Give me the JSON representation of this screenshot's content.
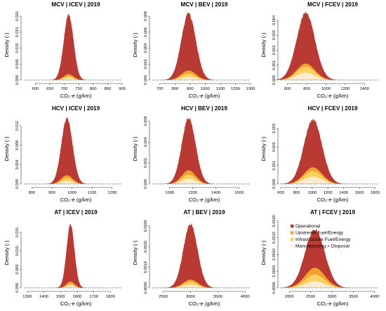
{
  "colors": {
    "operational": "#B83A32",
    "upstream": "#F0A32A",
    "infrastructure": "#F7D060",
    "manufacturing": "#FCEBD2"
  },
  "legend": {
    "items": [
      {
        "label": "Operational",
        "color": "#B83A32"
      },
      {
        "label": "Upstream Fuel/Energy",
        "color": "#F0A32A"
      },
      {
        "label": "Infrastructure Fuel/Energy",
        "color": "#F7D060"
      },
      {
        "label": "Manufacturing + Disposal",
        "color": "#FCEBD2"
      }
    ]
  },
  "chart_data": [
    {
      "type": "area",
      "title": "MCV | ICEV | 2019",
      "xlabel": "CO₂-e (g/km)",
      "ylabel": "Density (-)",
      "xlim": [
        560,
        900
      ],
      "ylim": [
        0,
        0.022
      ],
      "xticks": [
        "600",
        "650",
        "700",
        "750",
        "800",
        "850",
        "900"
      ],
      "yticks": [
        "0.000",
        "0.005",
        "0.010",
        "0.015",
        "0.020"
      ],
      "series": [
        {
          "name": "Operational",
          "peak_x": 715,
          "peak": 0.0205,
          "sd": 17
        },
        {
          "name": "Upstream Fuel/Energy",
          "peak_x": 715,
          "peak": 0.0018,
          "sd": 17
        },
        {
          "name": "Infrastructure Fuel/Energy",
          "peak_x": 715,
          "peak": 0.0012,
          "sd": 17
        },
        {
          "name": "Manufacturing + Disposal",
          "peak_x": 715,
          "peak": 0.0006,
          "sd": 17
        }
      ]
    },
    {
      "type": "area",
      "title": "MCV | BEV | 2019",
      "xlabel": "CO₂-e (g/km)",
      "ylabel": "Density (-)",
      "xlim": [
        650,
        1300
      ],
      "ylim": [
        0,
        0.0088
      ],
      "xticks": [
        "700",
        "800",
        "900",
        "1000",
        "1100",
        "1200",
        "1300"
      ],
      "yticks": [
        "0.000",
        "0.002",
        "0.004",
        "0.006",
        "0.008"
      ],
      "series": [
        {
          "name": "Operational",
          "peak_x": 890,
          "peak": 0.0083,
          "sd": 48
        },
        {
          "name": "Upstream Fuel/Energy",
          "peak_x": 890,
          "peak": 0.0012,
          "sd": 48
        },
        {
          "name": "Infrastructure Fuel/Energy",
          "peak_x": 890,
          "peak": 0.0008,
          "sd": 48
        },
        {
          "name": "Manufacturing + Disposal",
          "peak_x": 890,
          "peak": 0.0004,
          "sd": 48
        }
      ]
    },
    {
      "type": "area",
      "title": "MCV | FCEV | 2019",
      "xlabel": "CO₂-e (g/km)",
      "ylabel": "Density (-)",
      "xlim": [
        530,
        1550
      ],
      "ylim": [
        0,
        0.0047
      ],
      "xticks": [
        "600",
        "800",
        "1000",
        "1200",
        "1400"
      ],
      "yticks": [
        "0.000",
        "0.001",
        "0.002",
        "0.003",
        "0.004"
      ],
      "series": [
        {
          "name": "Operational",
          "peak_x": 790,
          "peak": 0.0045,
          "sd": 95
        },
        {
          "name": "Upstream Fuel/Energy",
          "peak_x": 790,
          "peak": 0.0011,
          "sd": 95
        },
        {
          "name": "Infrastructure Fuel/Energy",
          "peak_x": 790,
          "peak": 0.0009,
          "sd": 95
        },
        {
          "name": "Manufacturing + Disposal",
          "peak_x": 790,
          "peak": 0.0005,
          "sd": 95
        }
      ]
    },
    {
      "type": "area",
      "title": "HCV | ICEV | 2019",
      "xlabel": "CO₂-e (g/km)",
      "ylabel": "Density (-)",
      "xlim": [
        760,
        1250
      ],
      "ylim": [
        0,
        0.0145
      ],
      "xticks": [
        "800",
        "900",
        "1000",
        "1100",
        "1200"
      ],
      "yticks": [
        "0.000",
        "0.004",
        "0.008",
        "0.012"
      ],
      "series": [
        {
          "name": "Operational",
          "peak_x": 975,
          "peak": 0.0136,
          "sd": 28
        },
        {
          "name": "Upstream Fuel/Energy",
          "peak_x": 975,
          "peak": 0.0018,
          "sd": 28
        },
        {
          "name": "Infrastructure Fuel/Energy",
          "peak_x": 975,
          "peak": 0.0012,
          "sd": 28
        },
        {
          "name": "Manufacturing + Disposal",
          "peak_x": 975,
          "peak": 0.0006,
          "sd": 28
        }
      ]
    },
    {
      "type": "area",
      "title": "HCV | BEV | 2019",
      "xlabel": "CO₂-e (g/km)",
      "ylabel": "Density (-)",
      "xlim": [
        850,
        1700
      ],
      "ylim": [
        0,
        0.0067
      ],
      "xticks": [
        "1000",
        "1200",
        "1400",
        "1600"
      ],
      "yticks": [
        "0.000",
        "0.002",
        "0.004",
        "0.006"
      ],
      "series": [
        {
          "name": "Operational",
          "peak_x": 1165,
          "peak": 0.0063,
          "sd": 60
        },
        {
          "name": "Upstream Fuel/Energy",
          "peak_x": 1165,
          "peak": 0.0013,
          "sd": 60
        },
        {
          "name": "Infrastructure Fuel/Energy",
          "peak_x": 1165,
          "peak": 0.0009,
          "sd": 60
        },
        {
          "name": "Manufacturing + Disposal",
          "peak_x": 1165,
          "peak": 0.0005,
          "sd": 60
        }
      ]
    },
    {
      "type": "area",
      "title": "HCV | FCEV | 2019",
      "xlabel": "CO₂-e (g/km)",
      "ylabel": "Density (-)",
      "xlim": [
        600,
        1850
      ],
      "ylim": [
        0,
        0.0038
      ],
      "xticks": [
        "600",
        "800",
        "1000",
        "1200",
        "1400",
        "1600",
        "1800"
      ],
      "yticks": [
        "0.000",
        "0.001",
        "0.002",
        "0.003"
      ],
      "series": [
        {
          "name": "Operational",
          "peak_x": 1010,
          "peak": 0.0035,
          "sd": 115
        },
        {
          "name": "Upstream Fuel/Energy",
          "peak_x": 1010,
          "peak": 0.0009,
          "sd": 115
        },
        {
          "name": "Infrastructure Fuel/Energy",
          "peak_x": 1010,
          "peak": 0.0007,
          "sd": 115
        },
        {
          "name": "Manufacturing + Disposal",
          "peak_x": 1010,
          "peak": 0.0004,
          "sd": 115
        }
      ]
    },
    {
      "type": "area",
      "title": "AT | ICEV | 2019",
      "xlabel": "CO₂-e (g/km)",
      "ylabel": "Density (-)",
      "xlim": [
        1280,
        1870
      ],
      "ylim": [
        0,
        0.019
      ],
      "xticks": [
        "1300",
        "1400",
        "1500",
        "1600",
        "1700",
        "1800"
      ],
      "yticks": [
        "0.000",
        "0.005",
        "0.010",
        "0.015"
      ],
      "series": [
        {
          "name": "Operational",
          "peak_x": 1560,
          "peak": 0.0172,
          "sd": 24
        },
        {
          "name": "Upstream Fuel/Energy",
          "peak_x": 1560,
          "peak": 0.0017,
          "sd": 24
        },
        {
          "name": "Infrastructure Fuel/Energy",
          "peak_x": 1560,
          "peak": 0.0011,
          "sd": 24
        },
        {
          "name": "Manufacturing + Disposal",
          "peak_x": 1560,
          "peak": 0.0006,
          "sd": 24
        }
      ]
    },
    {
      "type": "area",
      "title": "AT | BEV | 2019",
      "xlabel": "CO₂-e (g/km)",
      "ylabel": "Density (-)",
      "xlim": [
        2300,
        4100
      ],
      "ylim": [
        0,
        0.0034
      ],
      "xticks": [
        "2500",
        "3000",
        "3500",
        "4000"
      ],
      "yticks": [
        "0.0000",
        "0.0010",
        "0.0020",
        "0.0030"
      ],
      "series": [
        {
          "name": "Operational",
          "peak_x": 3000,
          "peak": 0.0031,
          "sd": 130
        },
        {
          "name": "Upstream Fuel/Energy",
          "peak_x": 3000,
          "peak": 0.0004,
          "sd": 130
        },
        {
          "name": "Infrastructure Fuel/Energy",
          "peak_x": 3000,
          "peak": 0.0003,
          "sd": 130
        },
        {
          "name": "Manufacturing + Disposal",
          "peak_x": 3000,
          "peak": 0.00015,
          "sd": 130
        }
      ]
    },
    {
      "type": "area",
      "title": "AT | FCEV | 2019",
      "xlabel": "CO₂-e (g/km)",
      "ylabel": "Density (-)",
      "xlim": [
        1800,
        4100
      ],
      "ylim": [
        0,
        0.0021
      ],
      "xticks": [
        "2000",
        "2500",
        "3000",
        "3500",
        "4000"
      ],
      "yticks": [
        "0.0000",
        "0.0005",
        "0.0010",
        "0.0015",
        "0.0020"
      ],
      "series": [
        {
          "name": "Operational",
          "peak_x": 2600,
          "peak": 0.00175,
          "sd": 230
        },
        {
          "name": "Upstream Fuel/Energy",
          "peak_x": 2600,
          "peak": 0.0006,
          "sd": 230
        },
        {
          "name": "Infrastructure Fuel/Energy",
          "peak_x": 2600,
          "peak": 0.0004,
          "sd": 230
        },
        {
          "name": "Manufacturing + Disposal",
          "peak_x": 2600,
          "peak": 0.0002,
          "sd": 230
        }
      ]
    }
  ]
}
